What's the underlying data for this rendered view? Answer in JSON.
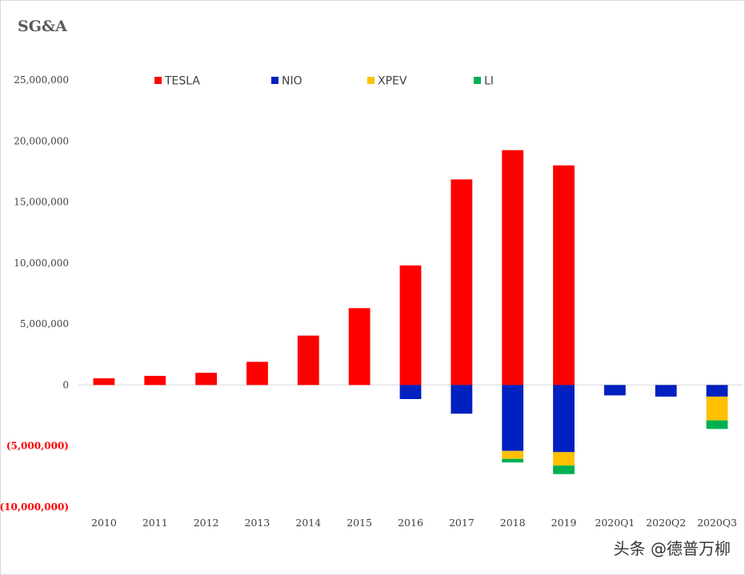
{
  "chart_data": {
    "type": "bar",
    "stacked": true,
    "title": "SG&A",
    "categories": [
      "2010",
      "2011",
      "2012",
      "2013",
      "2014",
      "2015",
      "2016",
      "2017",
      "2018",
      "2019",
      "2020Q1",
      "2020Q2",
      "2020Q3"
    ],
    "series": [
      {
        "name": "TESLA",
        "color": "#ff0000",
        "values": [
          550000,
          750000,
          1000000,
          1900000,
          4050000,
          6300000,
          9800000,
          16850000,
          19250000,
          18000000,
          0,
          0,
          0
        ]
      },
      {
        "name": "NIO",
        "color": "#0020c0",
        "values": [
          0,
          0,
          0,
          0,
          0,
          0,
          -1150000,
          -2350000,
          -5400000,
          -5500000,
          -850000,
          -950000,
          -950000
        ]
      },
      {
        "name": "XPEV",
        "color": "#ffc000",
        "values": [
          0,
          0,
          0,
          0,
          0,
          0,
          0,
          0,
          -650000,
          -1100000,
          0,
          0,
          -1950000
        ]
      },
      {
        "name": "LI",
        "color": "#00b050",
        "values": [
          0,
          0,
          0,
          0,
          0,
          0,
          0,
          0,
          -300000,
          -700000,
          0,
          0,
          -700000
        ]
      }
    ],
    "ylim": [
      -10000000,
      25000000
    ],
    "yticks": [
      25000000,
      20000000,
      15000000,
      10000000,
      5000000,
      0,
      -5000000,
      -10000000
    ],
    "ytick_labels": [
      "25,000,000",
      "20,000,000",
      "15,000,000",
      "10,000,000",
      "5,000,000",
      "0",
      "(5,000,000)",
      "(10,000,000)"
    ],
    "legend_position": "top",
    "xlabel": "",
    "ylabel": ""
  },
  "watermark": "头条 @德普万柳"
}
